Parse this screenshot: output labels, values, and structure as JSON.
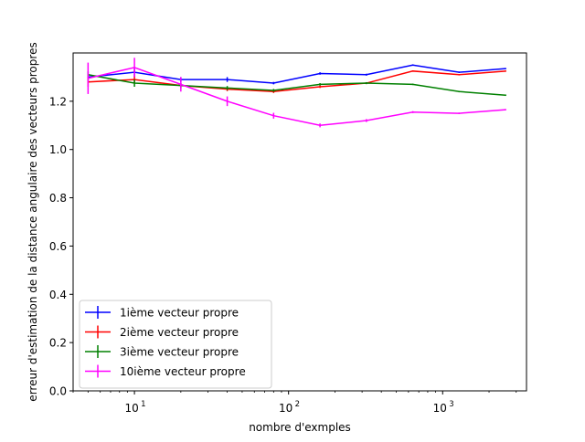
{
  "chart_data": {
    "type": "line",
    "title": "",
    "xlabel": "nombre d'exmples",
    "ylabel": "erreur d'estimation de la distance angulaire des vecteurs propres",
    "xscale": "log",
    "xlim": [
      4,
      3500
    ],
    "ylim": [
      0.0,
      1.4
    ],
    "xticks": [
      {
        "value": 10,
        "base": "10",
        "exp": "1"
      },
      {
        "value": 100,
        "base": "10",
        "exp": "2"
      },
      {
        "value": 1000,
        "base": "10",
        "exp": "3"
      }
    ],
    "yticks": [
      {
        "value": 0.0,
        "label": "0.0"
      },
      {
        "value": 0.2,
        "label": "0.2"
      },
      {
        "value": 0.4,
        "label": "0.4"
      },
      {
        "value": 0.6,
        "label": "0.6"
      },
      {
        "value": 0.8,
        "label": "0.8"
      },
      {
        "value": 1.0,
        "label": "1.0"
      },
      {
        "value": 1.2,
        "label": "1.2"
      }
    ],
    "grid": false,
    "legend_position": "lower-left",
    "x": [
      5,
      10,
      20,
      40,
      80,
      160,
      320,
      640,
      1280,
      2560
    ],
    "series": [
      {
        "name": "1ième vecteur propre",
        "color": "#0000ff",
        "values": [
          1.3,
          1.32,
          1.29,
          1.29,
          1.275,
          1.315,
          1.31,
          1.35,
          1.32,
          1.335
        ],
        "errors": [
          0.02,
          0.02,
          0.01,
          0.01,
          0.005,
          0.005,
          0.004,
          0.003,
          0.003,
          0.003
        ]
      },
      {
        "name": "2ième vecteur propre",
        "color": "#ff0000",
        "values": [
          1.28,
          1.29,
          1.265,
          1.25,
          1.24,
          1.26,
          1.275,
          1.325,
          1.31,
          1.325
        ],
        "errors": [
          0.02,
          0.015,
          0.01,
          0.008,
          0.006,
          0.005,
          0.004,
          0.003,
          0.003,
          0.003
        ]
      },
      {
        "name": "3ième vecteur propre",
        "color": "#008000",
        "values": [
          1.31,
          1.275,
          1.265,
          1.255,
          1.245,
          1.27,
          1.275,
          1.27,
          1.24,
          1.225
        ],
        "errors": [
          0.015,
          0.015,
          0.01,
          0.008,
          0.006,
          0.005,
          0.004,
          0.003,
          0.003,
          0.003
        ]
      },
      {
        "name": "10ième vecteur propre",
        "color": "#ff00ff",
        "values": [
          1.295,
          1.34,
          1.27,
          1.2,
          1.14,
          1.1,
          1.12,
          1.155,
          1.15,
          1.165
        ],
        "errors": [
          0.065,
          0.04,
          0.03,
          0.02,
          0.012,
          0.008,
          0.006,
          0.004,
          0.003,
          0.003
        ]
      }
    ]
  }
}
